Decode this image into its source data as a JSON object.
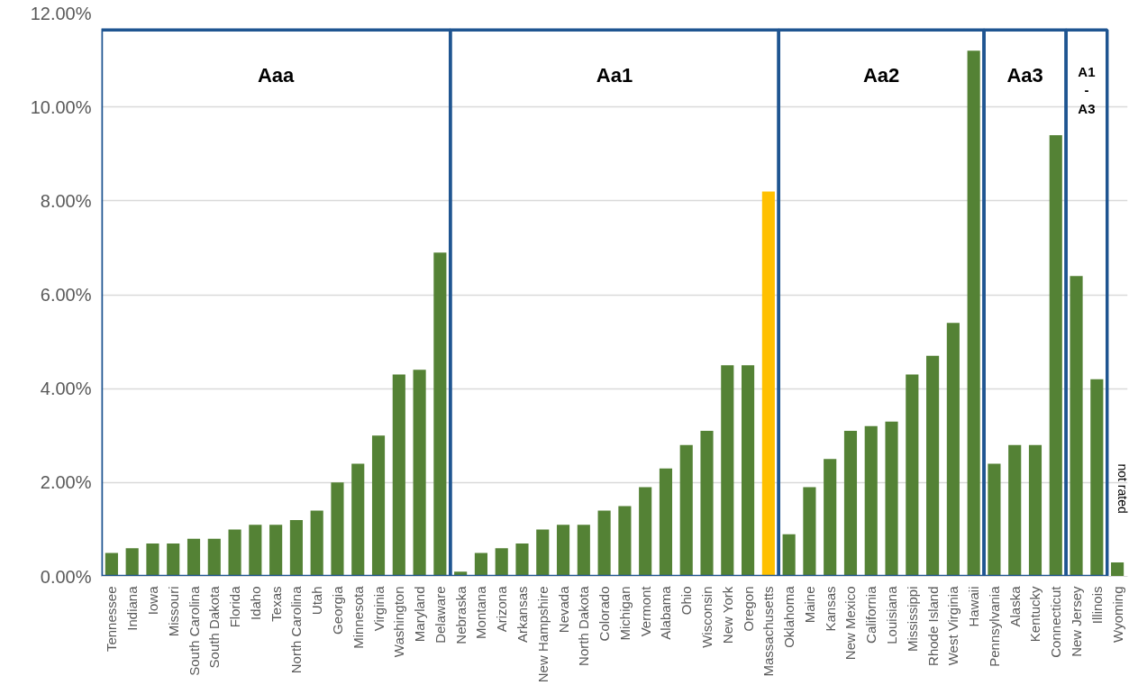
{
  "chart_data": {
    "type": "bar",
    "categories": [
      "Tennessee",
      "Indiana",
      "Iowa",
      "Missouri",
      "South Carolina",
      "South Dakota",
      "Florida",
      "Idaho",
      "Texas",
      "North Carolina",
      "Utah",
      "Georgia",
      "Minnesota",
      "Virginia",
      "Washington",
      "Maryland",
      "Delaware",
      "Nebraska",
      "Montana",
      "Arizona",
      "Arkansas",
      "New Hampshire",
      "Nevada",
      "North Dakota",
      "Colorado",
      "Michigan",
      "Vermont",
      "Alabama",
      "Ohio",
      "Wisconsin",
      "New York",
      "Oregon",
      "Massachusetts",
      "Oklahoma",
      "Maine",
      "Kansas",
      "New Mexico",
      "California",
      "Louisiana",
      "Mississippi",
      "Rhode Island",
      "West Virginia",
      "Hawaii",
      "Pennsylvania",
      "Alaska",
      "Kentucky",
      "Connecticut",
      "New Jersey",
      "Illinois",
      "Wyoming"
    ],
    "series": [
      {
        "color": "#548235",
        "values": [
          0.5,
          0.6,
          0.7,
          0.7,
          0.8,
          0.8,
          1.0,
          1.1,
          1.1,
          1.2,
          1.4,
          2.0,
          2.4,
          3.0,
          4.3,
          4.4,
          6.9,
          null,
          null,
          null,
          null,
          null,
          null,
          null,
          null,
          null,
          null,
          null,
          null,
          null,
          null,
          null,
          null,
          null,
          null,
          null,
          null,
          null,
          null,
          null,
          null,
          null,
          null,
          null,
          null,
          null,
          null,
          null,
          null,
          null
        ]
      },
      {
        "color": "#548235",
        "colors": [
          null,
          null,
          null,
          null,
          null,
          null,
          null,
          null,
          null,
          null,
          null,
          null,
          null,
          null,
          null,
          null,
          null,
          null,
          null,
          null,
          null,
          null,
          null,
          null,
          null,
          null,
          null,
          null,
          null,
          null,
          null,
          null,
          "#ffc000",
          null,
          null,
          null,
          null,
          null,
          null,
          null,
          null,
          null,
          null,
          null,
          null,
          null,
          null,
          null,
          null,
          null
        ],
        "values": [
          null,
          null,
          null,
          null,
          null,
          null,
          null,
          null,
          null,
          null,
          null,
          null,
          null,
          null,
          null,
          null,
          null,
          0.1,
          0.5,
          0.6,
          0.7,
          1.0,
          1.1,
          1.1,
          1.4,
          1.5,
          1.9,
          2.3,
          2.8,
          3.1,
          4.5,
          4.5,
          8.2,
          null,
          null,
          null,
          null,
          null,
          null,
          null,
          null,
          null,
          null,
          null,
          null,
          null,
          null,
          null,
          null,
          null
        ]
      },
      {
        "color": "#548235",
        "values": [
          null,
          null,
          null,
          null,
          null,
          null,
          null,
          null,
          null,
          null,
          null,
          null,
          null,
          null,
          null,
          null,
          null,
          null,
          null,
          null,
          null,
          null,
          null,
          null,
          null,
          null,
          null,
          null,
          null,
          null,
          null,
          null,
          null,
          0.9,
          1.9,
          2.5,
          3.1,
          3.2,
          3.3,
          4.3,
          4.7,
          5.4,
          11.2,
          null,
          null,
          null,
          null,
          null,
          null,
          null
        ]
      },
      {
        "color": "#548235",
        "values": [
          null,
          null,
          null,
          null,
          null,
          null,
          null,
          null,
          null,
          null,
          null,
          null,
          null,
          null,
          null,
          null,
          null,
          null,
          null,
          null,
          null,
          null,
          null,
          null,
          null,
          null,
          null,
          null,
          null,
          null,
          null,
          null,
          null,
          null,
          null,
          null,
          null,
          null,
          null,
          null,
          null,
          null,
          null,
          2.4,
          2.8,
          2.8,
          9.4,
          null,
          null,
          null
        ]
      },
      {
        "color": "#548235",
        "values": [
          null,
          null,
          null,
          null,
          null,
          null,
          null,
          null,
          null,
          null,
          null,
          null,
          null,
          null,
          null,
          null,
          null,
          null,
          null,
          null,
          null,
          null,
          null,
          null,
          null,
          null,
          null,
          null,
          null,
          null,
          null,
          null,
          null,
          null,
          null,
          null,
          null,
          null,
          null,
          null,
          null,
          null,
          null,
          null,
          null,
          null,
          null,
          6.4,
          4.2,
          null
        ]
      },
      {
        "color": "#548235",
        "values": [
          null,
          null,
          null,
          null,
          null,
          null,
          null,
          null,
          null,
          null,
          null,
          null,
          null,
          null,
          null,
          null,
          null,
          null,
          null,
          null,
          null,
          null,
          null,
          null,
          null,
          null,
          null,
          null,
          null,
          null,
          null,
          null,
          null,
          null,
          null,
          null,
          null,
          null,
          null,
          null,
          null,
          null,
          null,
          null,
          null,
          null,
          null,
          null,
          null,
          0.3
        ]
      }
    ],
    "annotations": [
      "Aaa",
      "Aa1",
      "Aa2",
      "Aa3",
      "A1 - A3",
      "not rated"
    ],
    "ylim": [
      0,
      12
    ],
    "yticks": [
      {
        "value": 0,
        "label": "0.00%"
      },
      {
        "value": 2,
        "label": "2.00%"
      },
      {
        "value": 4,
        "label": "4.00%"
      },
      {
        "value": 6,
        "label": "6.00%"
      },
      {
        "value": 8,
        "label": "8.00%"
      },
      {
        "value": 10,
        "label": "10.00%"
      },
      {
        "value": 12,
        "label": "12.00%"
      }
    ],
    "grid": "y"
  }
}
